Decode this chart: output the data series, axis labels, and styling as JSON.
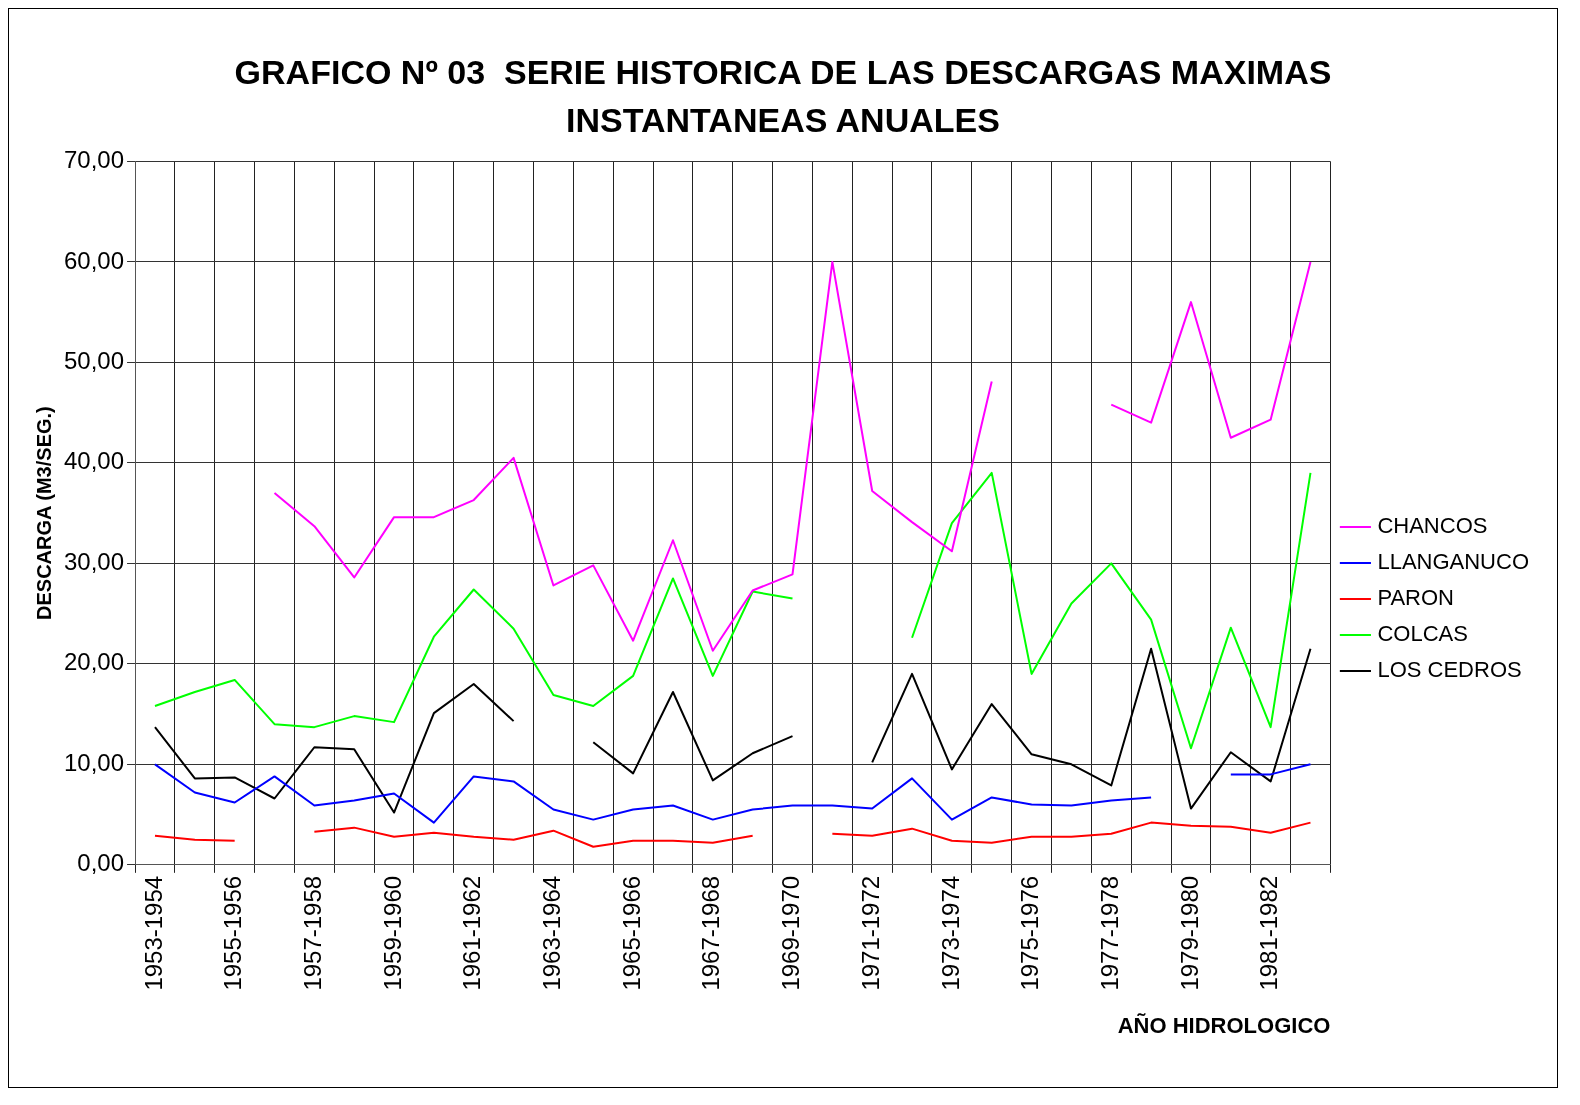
{
  "chart_data": {
    "type": "line",
    "title": "GRAFICO Nº 03  SERIE HISTORICA DE LAS DESCARGAS MAXIMAS INSTANTANEAS ANUALES",
    "xlabel": "AÑO HIDROLOGICO",
    "ylabel": "DESCARGA (M3/SEG.)",
    "categories": [
      "1953-1954",
      null,
      "1955-1956",
      null,
      "1957-1958",
      null,
      "1959-1960",
      null,
      "1961-1962",
      null,
      "1963-1964",
      null,
      "1965-1966",
      null,
      "1967-1968",
      null,
      "1969-1970",
      null,
      "1971-1972",
      null,
      "1973-1974",
      null,
      "1975-1976",
      null,
      "1977-1978",
      null,
      "1979-1980",
      null,
      "1981-1982",
      null
    ],
    "series": [
      {
        "name": "CHANCOS",
        "color": "#ff00ff",
        "values": [
          null,
          null,
          null,
          37.0,
          33.7,
          28.6,
          34.6,
          34.6,
          36.3,
          40.5,
          27.8,
          29.8,
          22.3,
          32.3,
          21.3,
          27.3,
          28.9,
          60.0,
          37.2,
          34.1,
          31.2,
          48.1,
          null,
          null,
          45.8,
          44.0,
          56.0,
          42.5,
          44.3,
          60.0
        ]
      },
      {
        "name": "LLANGANUCO",
        "color": "#0000ff",
        "values": [
          10.0,
          7.2,
          6.2,
          8.8,
          5.9,
          6.4,
          7.1,
          4.2,
          8.8,
          8.3,
          5.5,
          4.5,
          5.5,
          5.9,
          4.5,
          5.5,
          5.9,
          5.9,
          5.6,
          8.6,
          4.5,
          6.7,
          6.0,
          5.9,
          6.4,
          6.7,
          null,
          9.0,
          9.0,
          10.0
        ]
      },
      {
        "name": "PARON",
        "color": "#ff0000",
        "values": [
          2.9,
          2.5,
          2.4,
          null,
          3.3,
          3.7,
          2.8,
          3.2,
          2.8,
          2.5,
          3.4,
          1.8,
          2.4,
          2.4,
          2.2,
          2.9,
          null,
          3.1,
          2.9,
          3.6,
          2.4,
          2.2,
          2.8,
          2.8,
          3.1,
          4.2,
          3.9,
          3.8,
          3.2,
          4.2
        ]
      },
      {
        "name": "COLCAS",
        "color": "#00ff00",
        "values": [
          15.8,
          17.2,
          18.4,
          14.0,
          13.7,
          14.8,
          14.2,
          22.7,
          27.4,
          23.5,
          16.9,
          15.8,
          18.8,
          28.5,
          18.8,
          27.2,
          26.5,
          null,
          null,
          22.6,
          34.0,
          39.0,
          19.0,
          26.0,
          30.0,
          24.4,
          11.6,
          23.6,
          13.7,
          39.0
        ]
      },
      {
        "name": "LOS CEDROS",
        "color": "#000000",
        "values": [
          13.7,
          8.6,
          8.7,
          6.6,
          11.7,
          11.5,
          5.2,
          15.1,
          18.0,
          14.3,
          null,
          12.2,
          9.1,
          17.2,
          8.4,
          11.1,
          12.8,
          null,
          10.2,
          19.0,
          9.5,
          16.0,
          11.0,
          10.0,
          7.9,
          21.5,
          5.6,
          11.2,
          8.3,
          21.5
        ]
      }
    ],
    "ylim": [
      0,
      70
    ],
    "yticks": [
      {
        "value": 0,
        "label": "0,00"
      },
      {
        "value": 10,
        "label": "10,00"
      },
      {
        "value": 20,
        "label": "20,00"
      },
      {
        "value": 30,
        "label": "30,00"
      },
      {
        "value": 40,
        "label": "40,00"
      },
      {
        "value": 50,
        "label": "50,00"
      },
      {
        "value": 60,
        "label": "60,00"
      },
      {
        "value": 70,
        "label": "70,00"
      }
    ],
    "grid": true,
    "legend": "right",
    "marker": "none",
    "line_style": "solid"
  }
}
